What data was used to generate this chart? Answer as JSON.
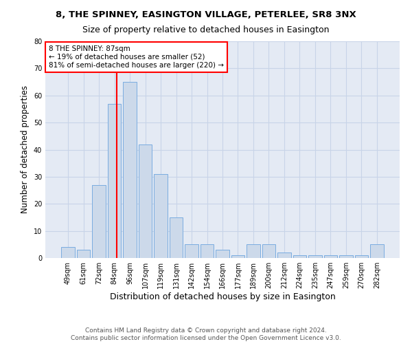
{
  "title1": "8, THE SPINNEY, EASINGTON VILLAGE, PETERLEE, SR8 3NX",
  "title2": "Size of property relative to detached houses in Easington",
  "xlabel": "Distribution of detached houses by size in Easington",
  "ylabel": "Number of detached properties",
  "categories": [
    "49sqm",
    "61sqm",
    "72sqm",
    "84sqm",
    "96sqm",
    "107sqm",
    "119sqm",
    "131sqm",
    "142sqm",
    "154sqm",
    "166sqm",
    "177sqm",
    "189sqm",
    "200sqm",
    "212sqm",
    "224sqm",
    "235sqm",
    "247sqm",
    "259sqm",
    "270sqm",
    "282sqm"
  ],
  "values": [
    4,
    3,
    27,
    57,
    65,
    42,
    31,
    15,
    5,
    5,
    3,
    1,
    5,
    5,
    2,
    1,
    1,
    1,
    1,
    1,
    5
  ],
  "bar_color": "#ccd9ea",
  "bar_edge_color": "#7aace0",
  "vline_color": "red",
  "vline_x_index": 3,
  "annotation_title": "8 THE SPINNEY: 87sqm",
  "annotation_line1": "← 19% of detached houses are smaller (52)",
  "annotation_line2": "81% of semi-detached houses are larger (220) →",
  "annotation_box_color": "white",
  "annotation_box_edge_color": "red",
  "ylim": [
    0,
    80
  ],
  "yticks": [
    0,
    10,
    20,
    30,
    40,
    50,
    60,
    70,
    80
  ],
  "grid_color": "#c8d4e8",
  "bg_color": "#e4eaf4",
  "footer1": "Contains HM Land Registry data © Crown copyright and database right 2024.",
  "footer2": "Contains public sector information licensed under the Open Government Licence v3.0.",
  "title1_fontsize": 9.5,
  "title2_fontsize": 9,
  "xlabel_fontsize": 9,
  "ylabel_fontsize": 8.5,
  "tick_fontsize": 7,
  "annotation_fontsize": 7.5,
  "footer_fontsize": 6.5
}
